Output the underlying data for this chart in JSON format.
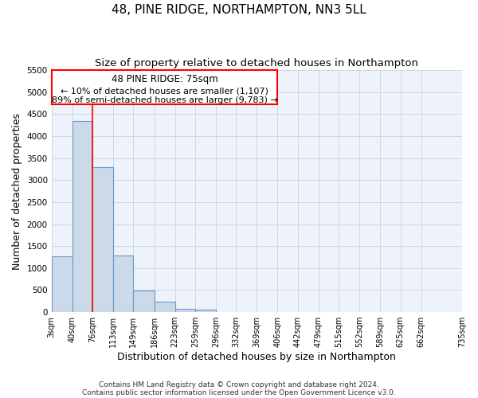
{
  "title": "48, PINE RIDGE, NORTHAMPTON, NN3 5LL",
  "subtitle": "Size of property relative to detached houses in Northampton",
  "xlabel": "Distribution of detached houses by size in Northampton",
  "ylabel": "Number of detached properties",
  "bar_color": "#ccd9e8",
  "bar_edge_color": "#6699cc",
  "bar_heights": [
    1270,
    4340,
    3300,
    1290,
    490,
    240,
    80,
    60,
    0,
    0,
    0,
    0,
    0,
    0,
    0,
    0,
    0,
    0,
    0
  ],
  "bin_edges": [
    3,
    40,
    76,
    113,
    149,
    186,
    223,
    259,
    296,
    332,
    369,
    406,
    442,
    479,
    515,
    552,
    589,
    625,
    662,
    735
  ],
  "x_tick_labels": [
    "3sqm",
    "40sqm",
    "76sqm",
    "113sqm",
    "149sqm",
    "186sqm",
    "223sqm",
    "259sqm",
    "296sqm",
    "332sqm",
    "369sqm",
    "406sqm",
    "442sqm",
    "479sqm",
    "515sqm",
    "552sqm",
    "589sqm",
    "625sqm",
    "662sqm",
    "735sqm"
  ],
  "ylim": [
    0,
    5500
  ],
  "yticks": [
    0,
    500,
    1000,
    1500,
    2000,
    2500,
    3000,
    3500,
    4000,
    4500,
    5000,
    5500
  ],
  "annotation_line1": "48 PINE RIDGE: 75sqm",
  "annotation_line2": "← 10% of detached houses are smaller (1,107)",
  "annotation_line3": "89% of semi-detached houses are larger (9,783) →",
  "property_line_x": 76,
  "grid_color": "#c8d8e8",
  "background_color": "#eef2fa",
  "footer_line1": "Contains HM Land Registry data © Crown copyright and database right 2024.",
  "footer_line2": "Contains public sector information licensed under the Open Government Licence v3.0.",
  "title_fontsize": 11,
  "subtitle_fontsize": 9.5,
  "axis_label_fontsize": 9,
  "tick_fontsize": 7,
  "annotation_fontsize": 8.5
}
